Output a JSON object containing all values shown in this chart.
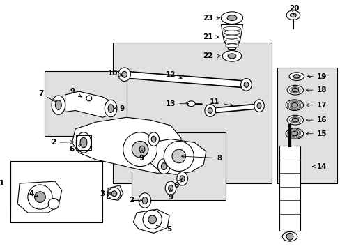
{
  "bg_color": "#ffffff",
  "shaded_color": "#e0e0e0",
  "line_color": "#000000",
  "figsize": [
    4.89,
    3.6
  ],
  "dpi": 100,
  "fs": 7.5
}
